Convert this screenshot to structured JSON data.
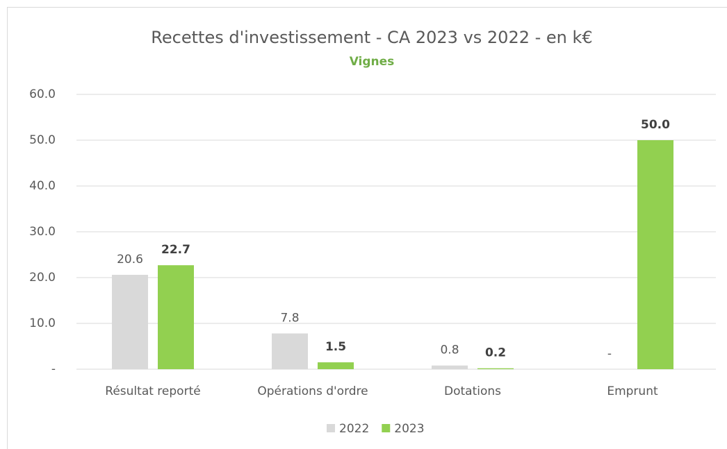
{
  "chart_data": {
    "type": "bar",
    "title": "Recettes d'investissement - CA 2023 vs 2022 - en k€",
    "subtitle": "Vignes",
    "categories": [
      "Résultat reporté",
      "Opérations d'ordre",
      "Dotations",
      "Emprunt"
    ],
    "series": [
      {
        "name": "2022",
        "color": "#d9d9d9",
        "values": [
          20.6,
          7.8,
          0.8,
          0
        ],
        "value_labels": [
          "20.6",
          "7.8",
          "0.8",
          "-"
        ]
      },
      {
        "name": "2023",
        "color": "#92d050",
        "values": [
          22.7,
          1.5,
          0.2,
          50
        ],
        "value_labels": [
          "22.7",
          "1.5",
          "0.2",
          "50.0"
        ]
      }
    ],
    "ylim": [
      0,
      60
    ],
    "yticks": [
      {
        "value": 0,
        "label": "-"
      },
      {
        "value": 10,
        "label": "10.0"
      },
      {
        "value": 20,
        "label": "20.0"
      },
      {
        "value": 30,
        "label": "30.0"
      },
      {
        "value": 40,
        "label": "40.0"
      },
      {
        "value": 50,
        "label": "50.0"
      },
      {
        "value": 60,
        "label": "60.0"
      }
    ],
    "grid": true,
    "legend": "bottom"
  }
}
